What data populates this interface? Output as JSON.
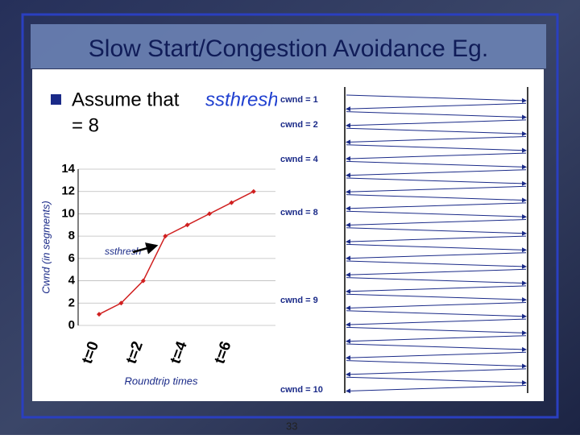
{
  "slide": {
    "title": "Slow Start/Congestion Avoidance Eg.",
    "bullet": [
      "Assume that",
      "ssthresh",
      "= 8"
    ],
    "diagram_labels": [
      "cwnd = 1",
      "cwnd = 2",
      "cwnd = 4",
      "cwnd = 8",
      "cwnd = 9",
      "cwnd = 10"
    ],
    "page_number": "33"
  },
  "chart_data": {
    "type": "line",
    "categories": [
      "t=0",
      null,
      "t=2",
      null,
      "t=4",
      null,
      "t=6",
      null
    ],
    "values": [
      1,
      2,
      4,
      8,
      9,
      10,
      11,
      12
    ],
    "color": "#d02020",
    "ylim": [
      0,
      14
    ],
    "yticks": [
      0,
      2,
      4,
      6,
      8,
      10,
      12,
      14
    ],
    "ylabel": "Cwnd (in segments)",
    "xlabel": "Roundtrip times",
    "annotation": "ssthresh",
    "grid": true
  }
}
